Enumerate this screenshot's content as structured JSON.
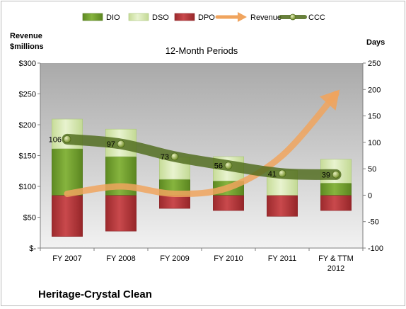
{
  "chart_data": {
    "type": "bar",
    "subtitle": "12-Month Periods",
    "company": "Heritage-Crystal Clean",
    "left_axis": {
      "title_line1": "Revenue",
      "title_line2": "$millions",
      "min": 0,
      "max": 300,
      "step": 50,
      "tick_labels": [
        "$-",
        "$50",
        "$100",
        "$150",
        "$200",
        "$250",
        "$300"
      ]
    },
    "right_axis": {
      "title": "Days",
      "min": -100,
      "max": 250,
      "step": 50,
      "tick_labels": [
        "-100",
        "-50",
        "0",
        "50",
        "100",
        "150",
        "200",
        "250"
      ]
    },
    "categories": [
      {
        "line1": "FY 2007",
        "line2": ""
      },
      {
        "line1": "FY 2008",
        "line2": ""
      },
      {
        "line1": "FY 2009",
        "line2": ""
      },
      {
        "line1": "FY 2010",
        "line2": ""
      },
      {
        "line1": "FY 2011",
        "line2": ""
      },
      {
        "line1": "FY & TTM",
        "line2": "2012"
      }
    ],
    "legend": [
      "DIO",
      "DSO",
      "DPO",
      "Revenue",
      "CCC"
    ],
    "series": [
      {
        "name": "DIO",
        "axis": "days",
        "values": [
          88,
          73,
          30,
          27,
          0,
          23
        ],
        "color": "#6f9a2e"
      },
      {
        "name": "DSO",
        "axis": "days",
        "values": [
          56,
          52,
          42,
          46,
          47,
          45
        ],
        "color": "#d2e5a8"
      },
      {
        "name": "DPO",
        "axis": "days",
        "values": [
          -78,
          -68,
          -25,
          -29,
          -40,
          -29
        ],
        "color": "#b5393c"
      },
      {
        "name": "Revenue",
        "axis": "revenue",
        "values": [
          88,
          100,
          88,
          98,
          150,
          250
        ],
        "color": "#f0a45e"
      },
      {
        "name": "CCC",
        "axis": "days",
        "values": [
          106,
          97,
          73,
          56,
          41,
          39
        ],
        "color": "#4e6a1b"
      }
    ],
    "ccc_labels": [
      "106",
      "97",
      "73",
      "56",
      "41",
      "39"
    ],
    "grid": false,
    "legend_position": "top"
  }
}
